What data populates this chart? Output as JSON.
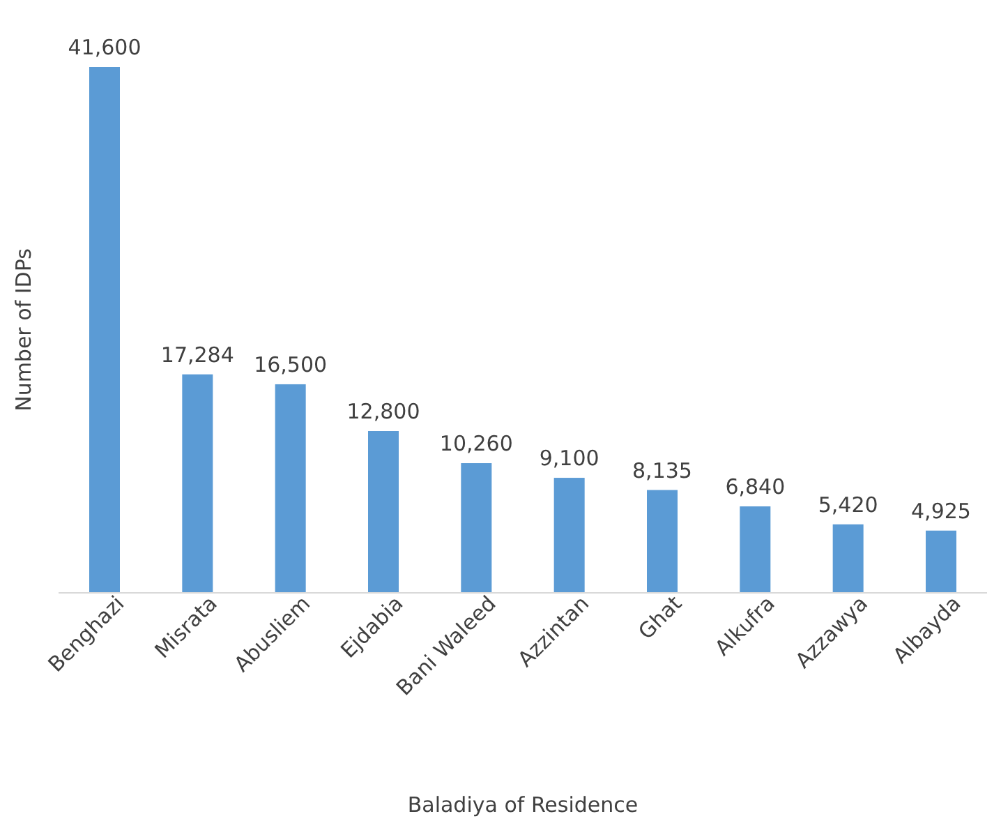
{
  "chart_data": {
    "type": "bar",
    "xlabel": "Baladiya of Residence",
    "ylabel": "Number of IDPs",
    "categories": [
      "Benghazi",
      "Misrata",
      "Abusliem",
      "Ejdabia",
      "Bani Waleed",
      "Azzintan",
      "Ghat",
      "Alkufra",
      "Azzawya",
      "Albayda"
    ],
    "values": [
      41600,
      17284,
      16500,
      12800,
      10260,
      9100,
      8135,
      6840,
      5420,
      4925
    ],
    "value_labels": [
      "41,600",
      "17,284",
      "16,500",
      "12,800",
      "10,260",
      "9,100",
      "8,135",
      "6,840",
      "5,420",
      "4,925"
    ],
    "color": "#5b9bd5"
  }
}
